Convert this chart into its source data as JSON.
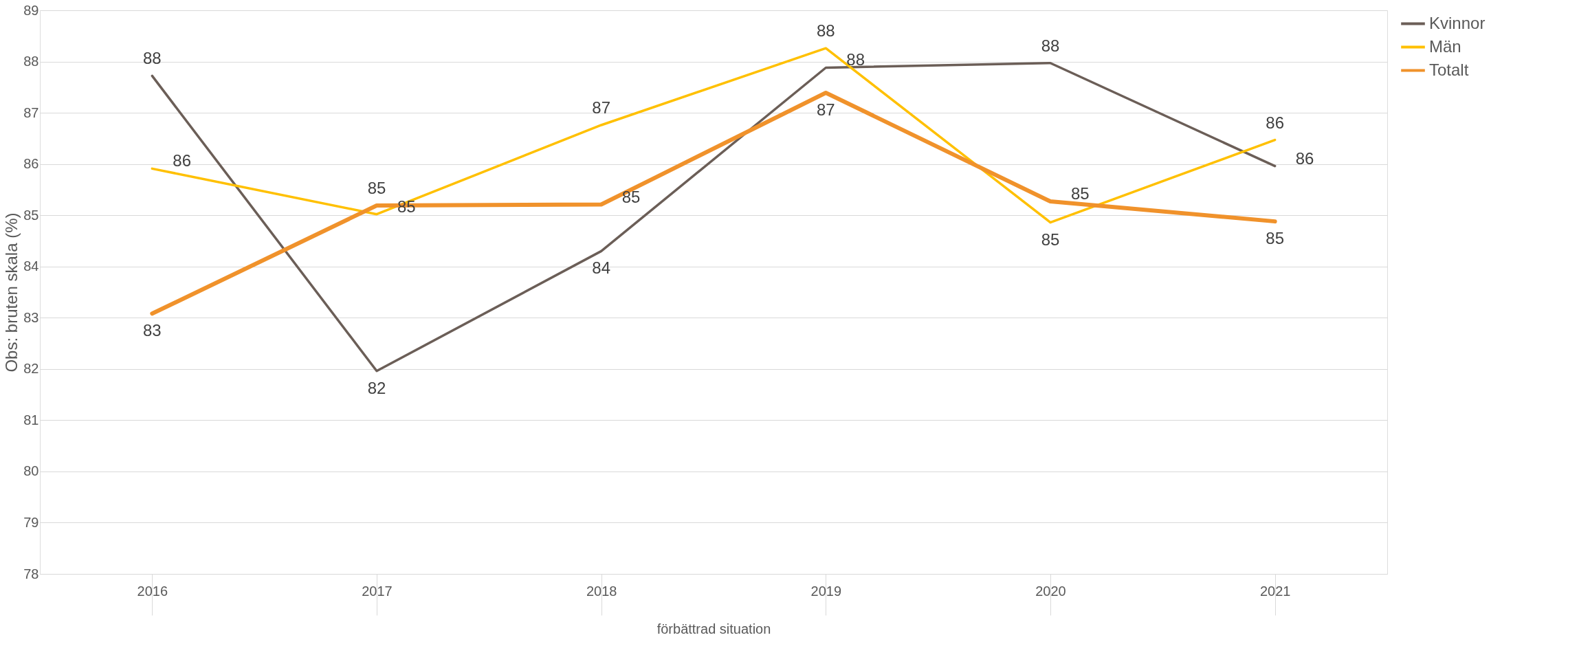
{
  "chart_data": {
    "type": "line",
    "ylabel": "Obs: bruten skala (%)",
    "xlabel": "förbättrad situation",
    "categories": [
      "2016",
      "2017",
      "2018",
      "2019",
      "2020",
      "2021"
    ],
    "series": [
      {
        "name": "Kvinnor",
        "color": "#6b5e57",
        "values": [
          87.72,
          81.96,
          84.3,
          87.88,
          87.97,
          85.96
        ],
        "value_labels": [
          "88",
          "82",
          "84",
          "88",
          "88",
          "86"
        ]
      },
      {
        "name": "Män",
        "color": "#ffc000",
        "values": [
          85.91,
          85.02,
          86.76,
          88.26,
          84.86,
          86.47
        ],
        "value_labels": [
          "86",
          "85",
          "87",
          "88",
          "85",
          "86"
        ]
      },
      {
        "name": "Totalt",
        "color": "#f0922b",
        "values": [
          83.08,
          85.19,
          85.21,
          87.39,
          85.27,
          84.88
        ],
        "value_labels": [
          "83",
          "85",
          "85",
          "87",
          "85",
          "85"
        ]
      }
    ],
    "ylim": [
      78,
      89
    ],
    "yticks": [
      78,
      79,
      80,
      81,
      82,
      83,
      84,
      85,
      86,
      87,
      88,
      89
    ],
    "grid": "y",
    "legend": "right",
    "marker": "none",
    "line_style": "solid"
  }
}
